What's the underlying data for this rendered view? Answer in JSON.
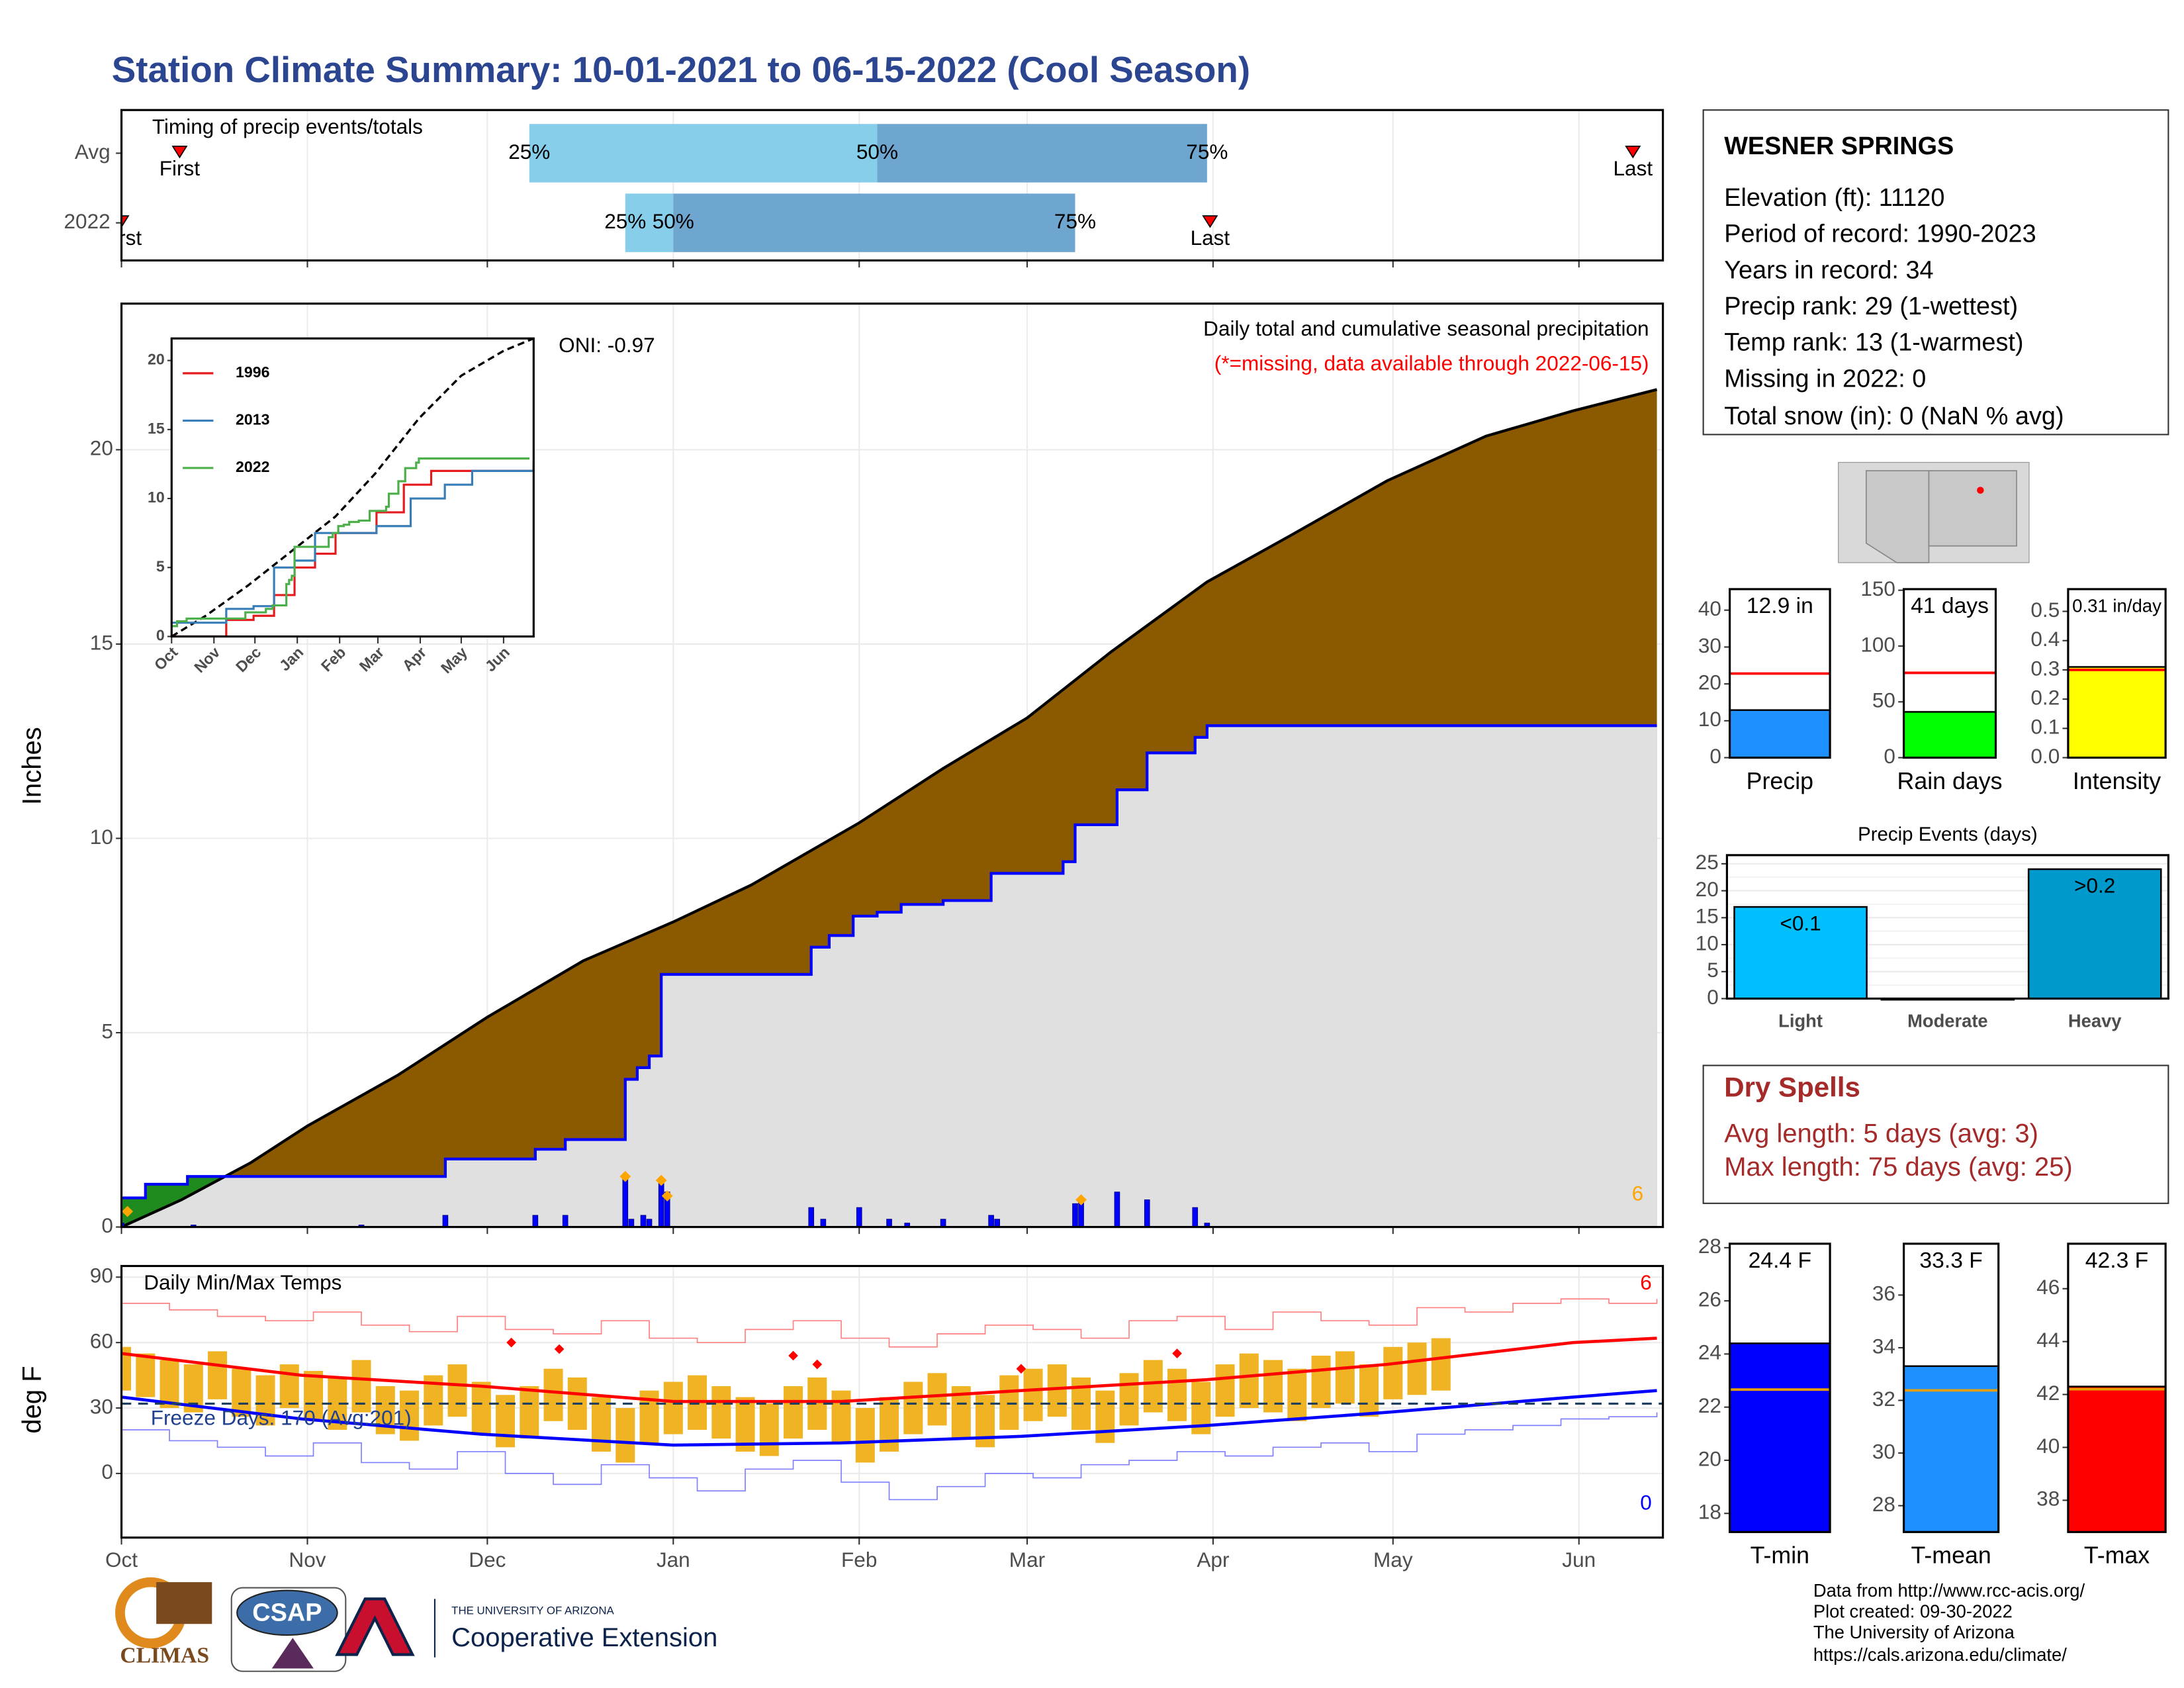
{
  "title": "Station Climate Summary: 10-01-2021 to 06-15-2022 (Cool Season)",
  "chart_data": [
    {
      "type": "timeline",
      "title": "Timing of precip events/totals",
      "rows": [
        {
          "name": "Avg",
          "first": 9.7,
          "q25": 68,
          "q50": 126,
          "q75": 181,
          "last": 252
        },
        {
          "name": "2022",
          "first": 0,
          "q25": 84,
          "q50": 92,
          "q75": 159,
          "last": 181.5
        }
      ],
      "first_label": "First",
      "last_label": "Last",
      "quantile_labels": [
        "25%",
        "50%",
        "75%"
      ],
      "colors": [
        "#87ceeb",
        "#6ea6cf"
      ],
      "marker_color": "#ff0000",
      "xlim": [
        0,
        257
      ],
      "xticks": [
        0,
        31,
        61,
        92,
        123,
        151,
        182,
        212,
        243
      ],
      "grid": true
    },
    {
      "type": "area",
      "title": "Daily total and cumulative seasonal precipitation",
      "subtitle": "(*=missing, data available through 2022-06-15)",
      "subtitle_color": "#ff0000",
      "annotations": [
        "ONI: -0.97",
        "6"
      ],
      "annotation_colors": [
        "#000000",
        "#ffa500"
      ],
      "ylabel": "Inches",
      "xlim": [
        0,
        257
      ],
      "ylim": [
        0,
        23.76
      ],
      "xticks": [
        0,
        31,
        61,
        92,
        123,
        151,
        182,
        212,
        243
      ],
      "yticks": [
        0,
        5,
        10,
        15,
        20
      ],
      "grid": true,
      "series": [
        {
          "type": "area",
          "fill": "#8b5a00",
          "color": "#000000",
          "step": false,
          "x": [
            0,
            10,
            21.5,
            31,
            46,
            61,
            77,
            92,
            105,
            123,
            137,
            151,
            165,
            181,
            195,
            211,
            227.5,
            242,
            256
          ],
          "values": [
            0,
            0.7,
            1.65,
            2.6,
            3.9,
            5.4,
            6.85,
            7.85,
            8.8,
            10.4,
            11.8,
            13.1,
            14.8,
            16.6,
            17.8,
            19.2,
            20.35,
            21.0,
            21.55
          ]
        },
        {
          "type": "area",
          "fill": "#e0e0e0",
          "above_fill": "#1f8b1f",
          "color": "#0000ff",
          "step": true,
          "x": [
            0,
            4,
            11,
            54,
            69,
            74,
            84,
            86,
            88,
            90,
            115,
            118,
            122,
            126,
            130,
            137,
            145,
            157,
            159,
            166,
            171,
            179,
            181,
            256
          ],
          "values": [
            0.75,
            1.1,
            1.3,
            1.75,
            2.0,
            2.25,
            3.8,
            4.1,
            4.4,
            6.5,
            7.2,
            7.5,
            8.0,
            8.1,
            8.3,
            8.4,
            9.1,
            9.4,
            10.35,
            11.25,
            12.2,
            12.6,
            12.9,
            12.9
          ]
        },
        {
          "type": "bar",
          "color": "#0000ff",
          "x": [
            0,
            12,
            40,
            54,
            69,
            74,
            84,
            85,
            87,
            88,
            90,
            91,
            115,
            117,
            123,
            128,
            131,
            137,
            145,
            146,
            159,
            160,
            166,
            171,
            179,
            181
          ],
          "values": [
            0.1,
            0.05,
            0.05,
            0.3,
            0.3,
            0.3,
            1.3,
            0.2,
            0.3,
            0.2,
            1.2,
            0.9,
            0.5,
            0.2,
            0.5,
            0.2,
            0.1,
            0.2,
            0.3,
            0.2,
            0.6,
            0.7,
            0.9,
            0.7,
            0.5,
            0.1
          ]
        },
        {
          "type": "point",
          "color": "#ffa500",
          "x": [
            1,
            84,
            90,
            91,
            160
          ],
          "values": [
            0.4,
            1.3,
            1.2,
            0.8,
            0.7
          ]
        }
      ]
    },
    {
      "type": "line",
      "legend": "top-left",
      "xlim": [
        0,
        265
      ],
      "ylim": [
        0,
        21.6
      ],
      "xticks": [
        {
          "value": 0,
          "label": "Oct"
        },
        {
          "value": 31,
          "label": "Nov"
        },
        {
          "value": 61,
          "label": "Dec"
        },
        {
          "value": 92,
          "label": "Jan"
        },
        {
          "value": 123,
          "label": "Feb"
        },
        {
          "value": 151,
          "label": "Mar"
        },
        {
          "value": 182,
          "label": "Apr"
        },
        {
          "value": 212,
          "label": "May"
        },
        {
          "value": 243,
          "label": "Jun"
        }
      ],
      "yticks": [
        0,
        5,
        10,
        15,
        20
      ],
      "series": [
        {
          "color": "#000000",
          "dash": true,
          "step": false,
          "x": [
            0,
            25,
            56,
            88,
            120,
            149,
            181,
            212,
            243,
            265
          ],
          "values": [
            0,
            1.5,
            3.7,
            6.2,
            8.7,
            11.8,
            15.8,
            18.9,
            20.7,
            21.6
          ]
        },
        {
          "name": "1996",
          "color": "#e41a1c",
          "step": true,
          "x": [
            0,
            30,
            40,
            60,
            75,
            90,
            105,
            120,
            150,
            170,
            190,
            265
          ],
          "values": [
            0,
            0,
            1.2,
            1.5,
            3,
            5,
            6,
            7.5,
            9,
            11,
            12,
            12.3
          ]
        },
        {
          "name": "2013",
          "color": "#377eb8",
          "step": true,
          "x": [
            0,
            40,
            60,
            75,
            90,
            105,
            150,
            175,
            200,
            220,
            265
          ],
          "values": [
            1,
            2,
            2.2,
            5,
            5.5,
            7.5,
            8,
            10,
            11,
            12,
            12.6
          ]
        },
        {
          "name": "2022",
          "color": "#4daf4a",
          "step": true,
          "x": [
            0,
            4,
            11,
            54,
            69,
            74,
            84,
            86,
            88,
            90,
            115,
            118,
            122,
            126,
            130,
            137,
            145,
            157,
            159,
            166,
            171,
            179,
            181,
            262
          ],
          "values": [
            0.75,
            1.1,
            1.3,
            1.75,
            2.0,
            2.25,
            3.8,
            4.1,
            4.4,
            6.5,
            7.2,
            7.5,
            8.0,
            8.1,
            8.3,
            8.4,
            9.1,
            9.4,
            10.35,
            11.25,
            12.2,
            12.6,
            12.9,
            12.9
          ]
        }
      ]
    },
    {
      "type": "range",
      "title": "Daily Min/Max Temps",
      "annotations": [
        "Freeze Days: 170 (Avg:201)",
        "6",
        "0"
      ],
      "annotation_colors": [
        "#1f3f8f",
        "#ff0000",
        "#0000ff"
      ],
      "ylabel": "deg F",
      "freeze": 32,
      "xlim": [
        0,
        257
      ],
      "ylim": [
        -29.4,
        95.1
      ],
      "xticks": [
        {
          "value": 0,
          "label": "Oct"
        },
        {
          "value": 31,
          "label": "Nov"
        },
        {
          "value": 61,
          "label": "Dec"
        },
        {
          "value": 92,
          "label": "Jan"
        },
        {
          "value": 123,
          "label": "Feb"
        },
        {
          "value": 151,
          "label": "Mar"
        },
        {
          "value": 182,
          "label": "Apr"
        },
        {
          "value": 212,
          "label": "May"
        },
        {
          "value": 243,
          "label": "Jun"
        }
      ],
      "yticks": [
        0,
        30,
        60,
        90
      ],
      "grid": true,
      "series": [
        {
          "type": "step",
          "color": "#ff8080",
          "x": [
            0,
            8,
            16,
            24,
            32,
            40,
            48,
            56,
            64,
            72,
            80,
            88,
            96,
            104,
            112,
            120,
            128,
            136,
            144,
            152,
            160,
            168,
            176,
            184,
            192,
            200,
            208,
            216,
            224,
            232,
            240,
            248,
            256
          ],
          "values": [
            78,
            75,
            72,
            70,
            74,
            68,
            65,
            72,
            66,
            64,
            70,
            62,
            60,
            66,
            70,
            62,
            58,
            64,
            68,
            66,
            62,
            70,
            72,
            66,
            74,
            70,
            68,
            76,
            74,
            78,
            80,
            78,
            80
          ]
        },
        {
          "type": "step",
          "color": "#8080ff",
          "x": [
            0,
            8,
            16,
            24,
            32,
            40,
            48,
            56,
            64,
            72,
            80,
            88,
            96,
            104,
            112,
            120,
            128,
            136,
            144,
            152,
            160,
            168,
            176,
            184,
            192,
            200,
            208,
            216,
            224,
            232,
            240,
            248,
            256
          ],
          "values": [
            20,
            15,
            12,
            8,
            14,
            5,
            2,
            10,
            0,
            -5,
            4,
            -2,
            -8,
            2,
            6,
            -4,
            -12,
            -6,
            0,
            -2,
            4,
            6,
            10,
            8,
            12,
            14,
            10,
            18,
            20,
            22,
            25,
            26,
            28
          ]
        },
        {
          "type": "range",
          "color": "#f0b323",
          "x": [
            0,
            4,
            8,
            12,
            16,
            20,
            24,
            28,
            32,
            36,
            40,
            44,
            48,
            52,
            56,
            60,
            64,
            68,
            72,
            76,
            80,
            84,
            88,
            92,
            96,
            100,
            104,
            108,
            112,
            116,
            120,
            124,
            128,
            132,
            136,
            140,
            144,
            148,
            152,
            156,
            160,
            164,
            168,
            172,
            176,
            180,
            184,
            188,
            192,
            196,
            200,
            204,
            208,
            212,
            216,
            220
          ],
          "low": [
            38,
            35,
            30,
            28,
            34,
            26,
            22,
            30,
            25,
            20,
            28,
            18,
            15,
            22,
            26,
            18,
            12,
            16,
            24,
            20,
            10,
            5,
            14,
            18,
            20,
            16,
            10,
            8,
            16,
            20,
            14,
            5,
            10,
            18,
            22,
            16,
            12,
            20,
            24,
            26,
            20,
            14,
            22,
            28,
            24,
            18,
            26,
            30,
            28,
            24,
            30,
            32,
            26,
            34,
            36,
            38
          ],
          "high": [
            58,
            55,
            52,
            50,
            56,
            48,
            45,
            50,
            47,
            44,
            52,
            40,
            38,
            45,
            50,
            42,
            36,
            40,
            48,
            44,
            35,
            30,
            38,
            42,
            45,
            40,
            35,
            32,
            40,
            44,
            38,
            30,
            35,
            42,
            46,
            40,
            36,
            45,
            48,
            50,
            44,
            38,
            46,
            52,
            48,
            42,
            50,
            55,
            52,
            48,
            54,
            56,
            50,
            58,
            60,
            62
          ]
        },
        {
          "type": "line",
          "color": "#ff0000",
          "x": [
            0,
            30,
            60,
            92,
            120,
            150,
            181,
            211,
            242,
            256
          ],
          "values": [
            55,
            45,
            40,
            33,
            33,
            38,
            43,
            50,
            60,
            62
          ]
        },
        {
          "type": "line",
          "color": "#0000ff",
          "x": [
            0,
            30,
            60,
            92,
            120,
            150,
            181,
            211,
            242,
            256
          ],
          "values": [
            35,
            25,
            18,
            13,
            14,
            17,
            22,
            28,
            35,
            38
          ]
        },
        {
          "type": "point",
          "color": "#ff0000",
          "x": [
            65,
            73,
            112,
            116,
            150,
            176
          ],
          "values": [
            60,
            57,
            54,
            50,
            48,
            55
          ]
        }
      ]
    },
    {
      "type": "bar",
      "categories": [
        "Precip"
      ],
      "values": [
        12.9
      ],
      "value_labels": [
        "12.9 in"
      ],
      "color": "#1e90ff",
      "avg": 22.8,
      "avg_color": "#ff0000",
      "ylim": [
        0,
        45.7
      ],
      "yticks": [
        0,
        10,
        20,
        30,
        40
      ]
    },
    {
      "type": "bar",
      "categories": [
        "Rain days"
      ],
      "values": [
        41
      ],
      "value_labels": [
        "41 days"
      ],
      "color": "#00ff00",
      "avg": 76,
      "avg_color": "#ff0000",
      "ylim": [
        0,
        151
      ],
      "yticks": [
        0,
        50,
        100,
        150
      ]
    },
    {
      "type": "bar",
      "categories": [
        "Intensity"
      ],
      "values": [
        0.31
      ],
      "value_labels": [
        "0.31 in/day"
      ],
      "color": "#ffff00",
      "avg": 0.3,
      "avg_color": "#ff0000",
      "ylim": [
        0,
        0.576
      ],
      "yticks": [
        {
          "value": 0,
          "label": "0.0"
        },
        0.1,
        0.2,
        0.3,
        0.4,
        0.5
      ]
    },
    {
      "type": "bar",
      "title": "Precip Events (days)",
      "categories": [
        "Light",
        "Moderate",
        "Heavy"
      ],
      "values": [
        17,
        0,
        24
      ],
      "bar_labels": [
        "<0.1",
        null,
        ">0.2"
      ],
      "colors": [
        "#00bfff",
        "#00bfff",
        "#0099cc"
      ],
      "ylim": [
        0,
        26.6
      ],
      "yticks": [
        0,
        5,
        10,
        15,
        20,
        25
      ],
      "grid": true
    },
    {
      "type": "bar",
      "categories": [
        "T-min"
      ],
      "values": [
        24.4
      ],
      "value_labels": [
        "24.4 F"
      ],
      "color": "#0000ff",
      "avg": 22.66,
      "avg_color": "#e69f00",
      "ylim": [
        17.3,
        28.15
      ],
      "yticks": [
        18,
        20,
        22,
        24,
        26,
        28
      ]
    },
    {
      "type": "bar",
      "categories": [
        "T-mean"
      ],
      "values": [
        33.3
      ],
      "value_labels": [
        "33.3 F"
      ],
      "color": "#1e90ff",
      "avg": 32.38,
      "avg_color": "#e69f00",
      "ylim": [
        27.0,
        37.95
      ],
      "yticks": [
        28,
        30,
        32,
        34,
        36
      ]
    },
    {
      "type": "bar",
      "categories": [
        "T-max"
      ],
      "values": [
        42.3
      ],
      "value_labels": [
        "42.3 F"
      ],
      "color": "#ff0000",
      "avg": 42.2,
      "avg_color": "#e69f00",
      "ylim": [
        36.8,
        47.7
      ],
      "yticks": [
        38,
        40,
        42,
        44,
        46
      ]
    }
  ],
  "station_info": {
    "name": "WESNER SPRINGS",
    "lines": [
      "Elevation (ft): 11120",
      "Period of record: 1990-2023",
      "Years in record: 34",
      "Precip rank: 29 (1-wettest)",
      "Temp rank: 13 (1-warmest)",
      "Missing in 2022: 0",
      "Total snow (in): 0 (NaN % avg)"
    ]
  },
  "dry_spells": {
    "title": "Dry Spells",
    "lines": [
      "Avg length: 5 days (avg: 3)",
      "Max length: 75 days (avg: 25)"
    ]
  },
  "footer": [
    "Data from http://www.rcc-acis.org/",
    "Plot created: 09-30-2022",
    "The University of Arizona",
    "https://cals.arizona.edu/climate/"
  ],
  "logos": {
    "climas": "CLIMAS",
    "csap": "CSAP",
    "ua": "THE UNIVERSITY OF ARIZONA",
    "coop": "Cooperative Extension"
  }
}
